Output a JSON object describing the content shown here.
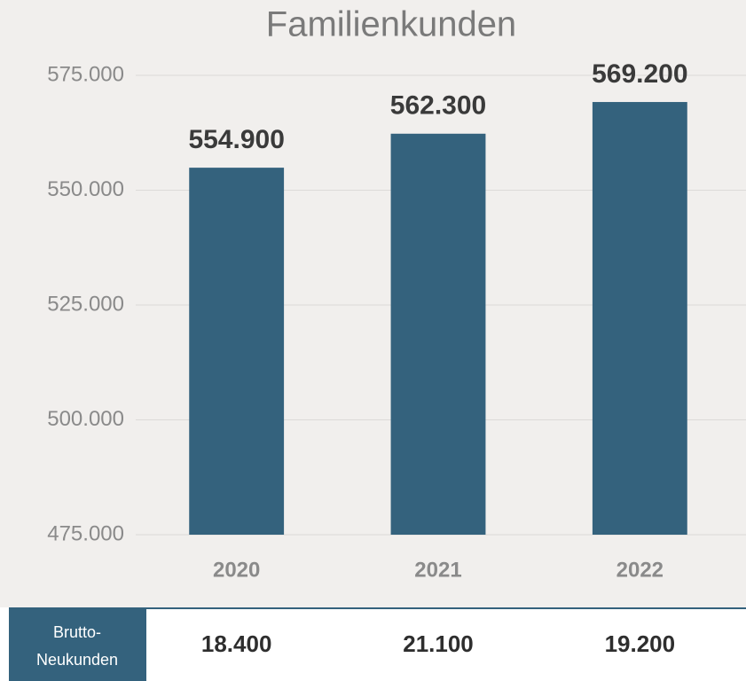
{
  "chart_data": {
    "type": "bar",
    "title": "Familienkunden",
    "categories": [
      "2020",
      "2021",
      "2022"
    ],
    "values": [
      554900,
      562300,
      569200
    ],
    "value_labels": [
      "554.900",
      "562.300",
      "569.200"
    ],
    "color": "#34627d",
    "ylim": [
      475000,
      575000
    ],
    "yticks": [
      {
        "value": 475000,
        "label": "475.000"
      },
      {
        "value": 500000,
        "label": "500.000"
      },
      {
        "value": 525000,
        "label": "525.000"
      },
      {
        "value": 550000,
        "label": "550.000"
      },
      {
        "value": 575000,
        "label": "575.000"
      }
    ],
    "grid": true
  },
  "table": {
    "header_lines": [
      "Brutto-",
      "Neukunden"
    ],
    "cells": [
      "18.400",
      "21.100",
      "19.200"
    ]
  }
}
